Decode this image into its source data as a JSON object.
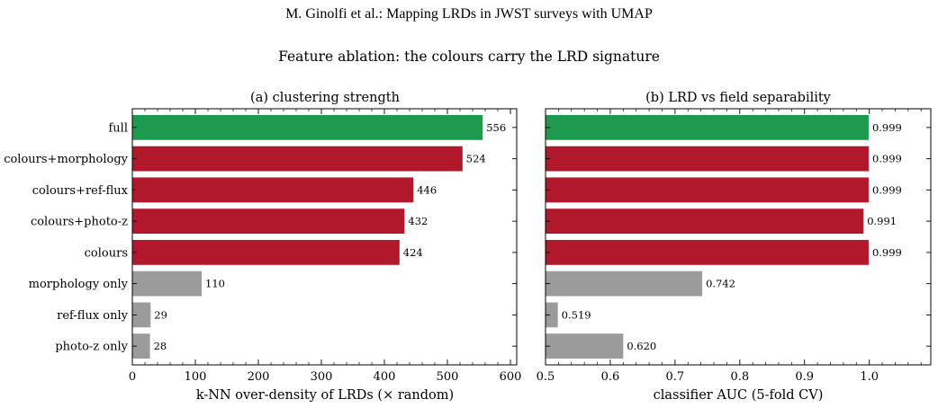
{
  "header": "M. Ginolfi et al.: Mapping LRDs in JWST surveys with UMAP",
  "suptitle": "Feature ablation: the colours carry the LRD signature",
  "colors": {
    "green": "#1e9a50",
    "red": "#b2182b",
    "grey": "#9b9b9b"
  },
  "chart_data": [
    {
      "type": "bar",
      "orientation": "horizontal",
      "title": "(a) clustering strength",
      "xlabel": "k-NN over-density of LRDs (× random)",
      "xlim": [
        0,
        610
      ],
      "xticks": [
        0,
        100,
        200,
        300,
        400,
        500,
        600
      ],
      "xtick_labels": [
        "0",
        "100",
        "200",
        "300",
        "400",
        "500",
        "600"
      ],
      "categories": [
        "full",
        "colours+morphology",
        "colours+ref-flux",
        "colours+photo-z",
        "colours",
        "morphology only",
        "ref-flux only",
        "photo-z only"
      ],
      "values": [
        556,
        524,
        446,
        432,
        424,
        110,
        29,
        28
      ],
      "value_labels": [
        "556",
        "524",
        "446",
        "432",
        "424",
        "110",
        "29",
        "28"
      ],
      "bar_colors": [
        "green",
        "red",
        "red",
        "red",
        "red",
        "grey",
        "grey",
        "grey"
      ]
    },
    {
      "type": "bar",
      "orientation": "horizontal",
      "title": "(b) LRD vs field separability",
      "xlabel": "classifier AUC (5-fold CV)",
      "xlim": [
        0.5,
        1.095
      ],
      "xticks": [
        0.5,
        0.6,
        0.7,
        0.8,
        0.9,
        1.0
      ],
      "xtick_labels": [
        "0.5",
        "0.6",
        "0.7",
        "0.8",
        "0.9",
        "1.0"
      ],
      "categories": [
        "full",
        "colours+morphology",
        "colours+ref-flux",
        "colours+photo-z",
        "colours",
        "morphology only",
        "ref-flux only",
        "photo-z only"
      ],
      "values": [
        0.999,
        0.999,
        0.999,
        0.991,
        0.999,
        0.742,
        0.519,
        0.62
      ],
      "value_labels": [
        "0.999",
        "0.999",
        "0.999",
        "0.991",
        "0.999",
        "0.742",
        "0.519",
        "0.620"
      ],
      "bar_colors": [
        "green",
        "red",
        "red",
        "red",
        "red",
        "grey",
        "grey",
        "grey"
      ]
    }
  ]
}
